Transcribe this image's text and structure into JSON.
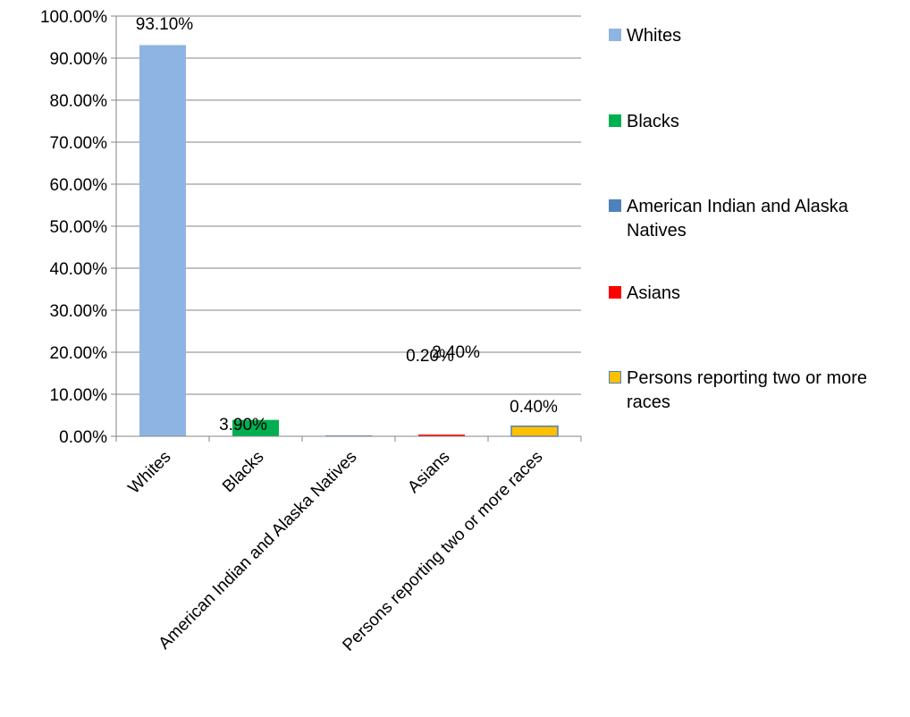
{
  "chart_data": {
    "type": "bar",
    "categories": [
      "Whites",
      "Blacks",
      "American Indian and Alaska Natives",
      "Asians",
      "Persons reporting two or more races"
    ],
    "values": [
      93.1,
      3.9,
      0.2,
      0.4,
      2.4
    ],
    "data_labels": [
      "93.10%",
      "3.90%",
      "0.20%",
      "0.40%",
      "2.40%"
    ],
    "ylim": [
      0,
      100
    ],
    "y_ticks": [
      "0.00%",
      "10.00%",
      "20.00%",
      "30.00%",
      "40.00%",
      "50.00%",
      "60.00%",
      "70.00%",
      "80.00%",
      "90.00%",
      "100.00%"
    ],
    "grid": true,
    "legend_position": "right",
    "colors": [
      "#8eb4e3",
      "#00b050",
      "#4f81bd",
      "#ff0000",
      "#ffc000"
    ],
    "legend": [
      {
        "label": "Whites",
        "color": "#8eb4e3"
      },
      {
        "label": "Blacks",
        "color": "#00b050"
      },
      {
        "label": "American Indian and Alaska Natives",
        "color": "#4f81bd"
      },
      {
        "label": "Asians",
        "color": "#ff0000"
      },
      {
        "label": "Persons reporting two or more races",
        "color": "#ffc000"
      }
    ]
  }
}
